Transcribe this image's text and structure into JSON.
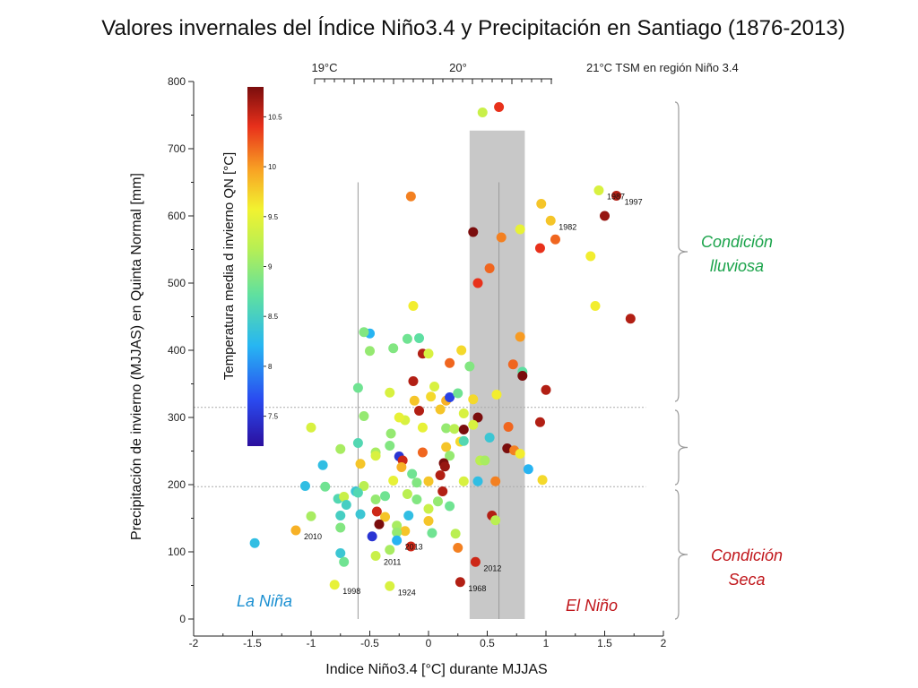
{
  "title": "Valores invernales del Índice Niño3.4 y Precipitación en Santiago (1876-2013)",
  "colors": {
    "lluviosa": "#1aa34a",
    "seca": "#c0161b",
    "lanina": "#1a8fd1",
    "elnino": "#c0161b",
    "band": "#c8c8c8"
  },
  "chart_data": {
    "type": "scatter",
    "xlabel": "Indice Niño3.4 [°C] durante MJJAS",
    "ylabel": "Precipitación de invierno (MJJAS)  en Quinta Normal [mm]",
    "xlim": [
      -2,
      2
    ],
    "ylim": [
      0,
      800
    ],
    "x_ticks": [
      "-2",
      "-1.5",
      "-1",
      "-0.5",
      "0",
      "0.5",
      "1",
      "1.5",
      "2"
    ],
    "y_ticks": [
      "0",
      "100",
      "200",
      "300",
      "400",
      "500",
      "600",
      "700",
      "800"
    ],
    "top_axis": {
      "labels": [
        "19°C",
        "20°",
        "21°C  TSM en región Niño 3.4"
      ]
    },
    "colorbar": {
      "label": "Temperatura media d invierno QN [°C]",
      "range": [
        7.2,
        10.8
      ],
      "ticks": [
        "7.5",
        "8",
        "8.5",
        "9",
        "9.5",
        "10",
        "10.5"
      ]
    },
    "band": {
      "x": [
        0.35,
        0.82
      ],
      "y": [
        0,
        727
      ]
    },
    "vlines": [
      -0.6,
      0.6
    ],
    "hlines": [
      315,
      197
    ],
    "regions": {
      "lluviosa": "Condición\nlluviosa",
      "seca": "Condición\nSeca",
      "lanina": "La Niña",
      "elnino": "El Niño"
    },
    "points": [
      {
        "x": 0.6,
        "y": 762,
        "t": 10.4
      },
      {
        "x": 0.46,
        "y": 754,
        "t": 9.3
      },
      {
        "x": 1.45,
        "y": 638,
        "t": 9.4,
        "year": "1987"
      },
      {
        "x": 1.6,
        "y": 630,
        "t": 10.6,
        "year": "1997"
      },
      {
        "x": 0.96,
        "y": 618,
        "t": 9.8
      },
      {
        "x": 1.04,
        "y": 593,
        "t": 9.8,
        "year": "1982"
      },
      {
        "x": 1.5,
        "y": 600,
        "t": 10.7
      },
      {
        "x": -0.15,
        "y": 629,
        "t": 10.1
      },
      {
        "x": 0.38,
        "y": 576,
        "t": 10.9
      },
      {
        "x": 0.62,
        "y": 568,
        "t": 10.1
      },
      {
        "x": 0.78,
        "y": 580,
        "t": 9.5
      },
      {
        "x": 1.08,
        "y": 565,
        "t": 10.2
      },
      {
        "x": 0.95,
        "y": 552,
        "t": 10.4
      },
      {
        "x": 1.38,
        "y": 540,
        "t": 9.6
      },
      {
        "x": 0.52,
        "y": 522,
        "t": 10.2
      },
      {
        "x": 0.42,
        "y": 500,
        "t": 10.4
      },
      {
        "x": 1.42,
        "y": 466,
        "t": 9.6
      },
      {
        "x": 1.72,
        "y": 447,
        "t": 10.6
      },
      {
        "x": -0.13,
        "y": 466,
        "t": 9.6
      },
      {
        "x": -0.5,
        "y": 425,
        "t": 8.2
      },
      {
        "x": -0.55,
        "y": 427,
        "t": 8.9
      },
      {
        "x": -0.5,
        "y": 399,
        "t": 9.0
      },
      {
        "x": -0.3,
        "y": 403,
        "t": 8.9
      },
      {
        "x": -0.18,
        "y": 417,
        "t": 8.8
      },
      {
        "x": -0.08,
        "y": 418,
        "t": 8.7
      },
      {
        "x": -0.05,
        "y": 395,
        "t": 10.6
      },
      {
        "x": 0.0,
        "y": 395,
        "t": 9.4
      },
      {
        "x": 0.18,
        "y": 381,
        "t": 10.2
      },
      {
        "x": 0.28,
        "y": 400,
        "t": 9.7
      },
      {
        "x": 0.35,
        "y": 376,
        "t": 8.9
      },
      {
        "x": 0.78,
        "y": 420,
        "t": 10.0
      },
      {
        "x": 0.8,
        "y": 368,
        "t": 8.7
      },
      {
        "x": 0.72,
        "y": 379,
        "t": 10.2
      },
      {
        "x": 0.8,
        "y": 362,
        "t": 10.9
      },
      {
        "x": 1.0,
        "y": 341,
        "t": 10.6
      },
      {
        "x": -0.6,
        "y": 344,
        "t": 8.8
      },
      {
        "x": -0.33,
        "y": 337,
        "t": 9.4
      },
      {
        "x": -0.13,
        "y": 354,
        "t": 10.6
      },
      {
        "x": 0.05,
        "y": 346,
        "t": 9.4
      },
      {
        "x": -0.12,
        "y": 325,
        "t": 9.8
      },
      {
        "x": 0.02,
        "y": 331,
        "t": 9.7
      },
      {
        "x": 0.15,
        "y": 325,
        "t": 9.9
      },
      {
        "x": 0.18,
        "y": 330,
        "t": 7.6
      },
      {
        "x": 0.25,
        "y": 336,
        "t": 8.8
      },
      {
        "x": 0.38,
        "y": 327,
        "t": 9.7
      },
      {
        "x": 0.58,
        "y": 334,
        "t": 9.6
      },
      {
        "x": -0.08,
        "y": 310,
        "t": 10.6
      },
      {
        "x": 0.1,
        "y": 312,
        "t": 9.8
      },
      {
        "x": 0.3,
        "y": 306,
        "t": 9.4
      },
      {
        "x": 0.42,
        "y": 300,
        "t": 10.9
      },
      {
        "x": -0.55,
        "y": 302,
        "t": 9.0
      },
      {
        "x": -0.2,
        "y": 296,
        "t": 9.4
      },
      {
        "x": -0.25,
        "y": 300,
        "t": 9.5
      },
      {
        "x": 0.95,
        "y": 293,
        "t": 10.6
      },
      {
        "x": -1.0,
        "y": 285,
        "t": 9.4
      },
      {
        "x": -0.32,
        "y": 276,
        "t": 9.0
      },
      {
        "x": -0.05,
        "y": 285,
        "t": 9.5
      },
      {
        "x": 0.15,
        "y": 284,
        "t": 9.0
      },
      {
        "x": 0.22,
        "y": 283,
        "t": 9.2
      },
      {
        "x": 0.3,
        "y": 282,
        "t": 10.9
      },
      {
        "x": 0.38,
        "y": 289,
        "t": 9.4
      },
      {
        "x": 0.68,
        "y": 286,
        "t": 10.2
      },
      {
        "x": 0.27,
        "y": 264,
        "t": 9.7
      },
      {
        "x": 0.3,
        "y": 265,
        "t": 8.6
      },
      {
        "x": 0.52,
        "y": 270,
        "t": 8.4
      },
      {
        "x": -0.6,
        "y": 262,
        "t": 8.6
      },
      {
        "x": -0.75,
        "y": 253,
        "t": 9.1
      },
      {
        "x": -0.33,
        "y": 258,
        "t": 8.9
      },
      {
        "x": -0.45,
        "y": 248,
        "t": 9.1
      },
      {
        "x": -0.05,
        "y": 248,
        "t": 10.2
      },
      {
        "x": 0.15,
        "y": 256,
        "t": 9.8
      },
      {
        "x": 0.18,
        "y": 243,
        "t": 9.0
      },
      {
        "x": 0.67,
        "y": 254,
        "t": 10.9
      },
      {
        "x": 0.73,
        "y": 251,
        "t": 10.1
      },
      {
        "x": 0.78,
        "y": 246,
        "t": 9.6
      },
      {
        "x": -0.45,
        "y": 243,
        "t": 9.4
      },
      {
        "x": -0.25,
        "y": 242,
        "t": 7.5
      },
      {
        "x": -0.22,
        "y": 236,
        "t": 10.5
      },
      {
        "x": -0.58,
        "y": 231,
        "t": 9.8
      },
      {
        "x": -0.23,
        "y": 226,
        "t": 9.9
      },
      {
        "x": 0.13,
        "y": 232,
        "t": 10.8
      },
      {
        "x": 0.14,
        "y": 227,
        "t": 10.7
      },
      {
        "x": 0.44,
        "y": 236,
        "t": 9.2
      },
      {
        "x": 0.48,
        "y": 236,
        "t": 9.1
      },
      {
        "x": -0.9,
        "y": 229,
        "t": 8.3
      },
      {
        "x": -0.14,
        "y": 216,
        "t": 8.8
      },
      {
        "x": 0.1,
        "y": 214,
        "t": 10.6
      },
      {
        "x": -1.05,
        "y": 198,
        "t": 8.3
      },
      {
        "x": -0.88,
        "y": 197,
        "t": 8.8
      },
      {
        "x": -0.62,
        "y": 190,
        "t": 8.4
      },
      {
        "x": -0.55,
        "y": 198,
        "t": 9.2
      },
      {
        "x": -0.3,
        "y": 206,
        "t": 9.5
      },
      {
        "x": -0.1,
        "y": 203,
        "t": 8.9
      },
      {
        "x": 0.0,
        "y": 205,
        "t": 9.8
      },
      {
        "x": 0.3,
        "y": 205,
        "t": 9.4
      },
      {
        "x": 0.42,
        "y": 205,
        "t": 8.3
      },
      {
        "x": 0.57,
        "y": 205,
        "t": 10.1
      },
      {
        "x": 0.85,
        "y": 223,
        "t": 8.2
      },
      {
        "x": 0.97,
        "y": 207,
        "t": 9.7
      },
      {
        "x": -0.77,
        "y": 179,
        "t": 8.6
      },
      {
        "x": -0.72,
        "y": 182,
        "t": 9.3
      },
      {
        "x": -0.7,
        "y": 170,
        "t": 8.5
      },
      {
        "x": -0.6,
        "y": 188,
        "t": 8.6
      },
      {
        "x": -0.45,
        "y": 178,
        "t": 9.0
      },
      {
        "x": -0.37,
        "y": 183,
        "t": 8.8
      },
      {
        "x": -0.18,
        "y": 186,
        "t": 9.2
      },
      {
        "x": -0.1,
        "y": 178,
        "t": 8.9
      },
      {
        "x": 0.08,
        "y": 175,
        "t": 9.0
      },
      {
        "x": 0.12,
        "y": 190,
        "t": 10.6
      },
      {
        "x": 0.18,
        "y": 168,
        "t": 8.8
      },
      {
        "x": -0.58,
        "y": 156,
        "t": 8.4
      },
      {
        "x": -0.44,
        "y": 160,
        "t": 10.5
      },
      {
        "x": -0.37,
        "y": 152,
        "t": 9.8
      },
      {
        "x": -0.17,
        "y": 154,
        "t": 8.3
      },
      {
        "x": 0.0,
        "y": 164,
        "t": 9.3
      },
      {
        "x": 0.0,
        "y": 146,
        "t": 9.8
      },
      {
        "x": -1.0,
        "y": 153,
        "t": 9.1
      },
      {
        "x": -0.75,
        "y": 154,
        "t": 8.5
      },
      {
        "x": -0.75,
        "y": 136,
        "t": 8.9
      },
      {
        "x": -1.13,
        "y": 132,
        "t": 9.9,
        "year": "2010"
      },
      {
        "x": -0.42,
        "y": 141,
        "t": 10.9
      },
      {
        "x": -0.27,
        "y": 139,
        "t": 9.1
      },
      {
        "x": -0.2,
        "y": 131,
        "t": 9.8
      },
      {
        "x": -0.27,
        "y": 129,
        "t": 9.0
      },
      {
        "x": -0.48,
        "y": 123,
        "t": 7.5
      },
      {
        "x": -0.27,
        "y": 117,
        "t": 8.2,
        "year": "2013"
      },
      {
        "x": 0.03,
        "y": 128,
        "t": 8.8
      },
      {
        "x": 0.23,
        "y": 127,
        "t": 9.2
      },
      {
        "x": 0.54,
        "y": 154,
        "t": 10.6
      },
      {
        "x": 0.57,
        "y": 147,
        "t": 9.2
      },
      {
        "x": -1.48,
        "y": 113,
        "t": 8.3
      },
      {
        "x": -0.15,
        "y": 108,
        "t": 10.5
      },
      {
        "x": 0.25,
        "y": 106,
        "t": 10.1
      },
      {
        "x": -0.75,
        "y": 98,
        "t": 8.4
      },
      {
        "x": -0.33,
        "y": 103,
        "t": 9.1
      },
      {
        "x": -0.45,
        "y": 94,
        "t": 9.3,
        "year": "2011"
      },
      {
        "x": -0.72,
        "y": 85,
        "t": 8.8
      },
      {
        "x": 0.4,
        "y": 85,
        "t": 10.5,
        "year": "2012"
      },
      {
        "x": -0.8,
        "y": 51,
        "t": 9.5,
        "year": "1998"
      },
      {
        "x": -0.33,
        "y": 49,
        "t": 9.4,
        "year": "1924"
      },
      {
        "x": 0.27,
        "y": 55,
        "t": 10.6,
        "year": "1968"
      }
    ]
  }
}
